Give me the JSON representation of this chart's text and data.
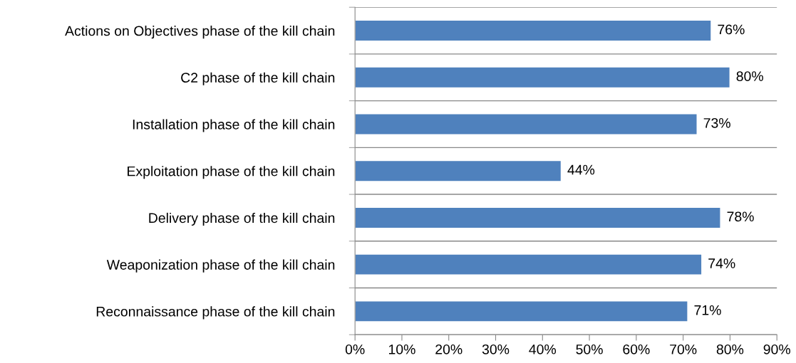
{
  "chart_data": {
    "type": "bar",
    "orientation": "horizontal",
    "categories": [
      "Actions on Objectives phase of the kill chain",
      "C2 phase of the kill chain",
      "Installation phase of the kill chain",
      "Exploitation phase of the kill chain",
      "Delivery phase of the kill chain",
      "Weaponization phase of the kill chain",
      "Reconnaissance phase of the kill chain"
    ],
    "values": [
      76,
      80,
      73,
      44,
      78,
      74,
      71
    ],
    "value_labels": [
      "76%",
      "80%",
      "73%",
      "44%",
      "78%",
      "74%",
      "71%"
    ],
    "color": "#4f81bd",
    "xlim": [
      0,
      90
    ],
    "xticks": [
      {
        "value": 0,
        "label": "0%"
      },
      {
        "value": 10,
        "label": "10%"
      },
      {
        "value": 20,
        "label": "20%"
      },
      {
        "value": 30,
        "label": "30%"
      },
      {
        "value": 40,
        "label": "40%"
      },
      {
        "value": 50,
        "label": "50%"
      },
      {
        "value": 60,
        "label": "60%"
      },
      {
        "value": 70,
        "label": "70%"
      },
      {
        "value": 80,
        "label": "80%"
      },
      {
        "value": 90,
        "label": "90%"
      }
    ],
    "grid": "y"
  }
}
